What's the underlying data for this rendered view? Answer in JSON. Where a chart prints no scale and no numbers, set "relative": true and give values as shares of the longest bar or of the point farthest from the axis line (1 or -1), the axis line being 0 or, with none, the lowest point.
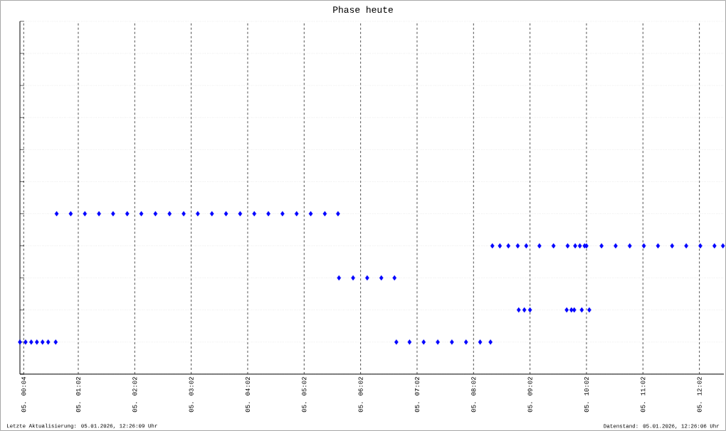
{
  "chart_data": {
    "type": "scatter",
    "title": "Phase heute",
    "relative": true,
    "marker": "diamond",
    "grid": true,
    "xlim": [
      "2026-01-05T00:00",
      "2026-01-05T12:28"
    ],
    "xticks": [
      {
        "value": "2026-01-05T00:04",
        "label": "05. 00:04"
      },
      {
        "value": "2026-01-05T01:02",
        "label": "05. 01:02"
      },
      {
        "value": "2026-01-05T02:02",
        "label": "05. 02:02"
      },
      {
        "value": "2026-01-05T03:02",
        "label": "05. 03:02"
      },
      {
        "value": "2026-01-05T04:02",
        "label": "05. 04:02"
      },
      {
        "value": "2026-01-05T05:02",
        "label": "05. 05:02"
      },
      {
        "value": "2026-01-05T06:02",
        "label": "05. 06:02"
      },
      {
        "value": "2026-01-05T07:02",
        "label": "05. 07:02"
      },
      {
        "value": "2026-01-05T08:02",
        "label": "05. 08:02"
      },
      {
        "value": "2026-01-05T09:02",
        "label": "05. 09:02"
      },
      {
        "value": "2026-01-05T10:02",
        "label": "05. 10:02"
      },
      {
        "value": "2026-01-05T11:02",
        "label": "05. 11:02"
      },
      {
        "value": "2026-01-05T12:02",
        "label": "05. 12:02"
      }
    ],
    "series": [
      {
        "color": "#0000ff",
        "x": [
          "2026-01-05T00:00",
          "2026-01-05T00:06",
          "2026-01-05T00:12",
          "2026-01-05T00:18",
          "2026-01-05T00:24",
          "2026-01-05T00:30",
          "2026-01-05T00:38",
          "2026-01-05T00:39",
          "2026-01-05T00:54",
          "2026-01-05T01:09",
          "2026-01-05T01:24",
          "2026-01-05T01:39",
          "2026-01-05T01:54",
          "2026-01-05T02:09",
          "2026-01-05T02:24",
          "2026-01-05T02:39",
          "2026-01-05T02:54",
          "2026-01-05T03:09",
          "2026-01-05T03:24",
          "2026-01-05T03:39",
          "2026-01-05T03:54",
          "2026-01-05T04:09",
          "2026-01-05T04:24",
          "2026-01-05T04:39",
          "2026-01-05T04:54",
          "2026-01-05T05:09",
          "2026-01-05T05:24",
          "2026-01-05T05:38",
          "2026-01-05T05:39",
          "2026-01-05T05:54",
          "2026-01-05T06:09",
          "2026-01-05T06:24",
          "2026-01-05T06:38",
          "2026-01-05T06:40",
          "2026-01-05T06:54",
          "2026-01-05T07:09",
          "2026-01-05T07:24",
          "2026-01-05T07:39",
          "2026-01-05T07:54",
          "2026-01-05T08:09",
          "2026-01-05T08:20",
          "2026-01-05T08:22",
          "2026-01-05T08:30",
          "2026-01-05T08:39",
          "2026-01-05T08:49",
          "2026-01-05T08:50",
          "2026-01-05T08:56",
          "2026-01-05T09:02",
          "2026-01-05T08:58",
          "2026-01-05T09:12",
          "2026-01-05T09:27",
          "2026-01-05T09:42",
          "2026-01-05T09:41",
          "2026-01-05T09:46",
          "2026-01-05T09:49",
          "2026-01-05T09:50",
          "2026-01-05T09:55",
          "2026-01-05T10:00",
          "2026-01-05T09:57",
          "2026-01-05T10:05",
          "2026-01-05T10:02",
          "2026-01-05T10:18",
          "2026-01-05T10:33",
          "2026-01-05T10:48",
          "2026-01-05T11:03",
          "2026-01-05T11:18",
          "2026-01-05T11:33",
          "2026-01-05T11:48",
          "2026-01-05T12:03",
          "2026-01-05T12:18",
          "2026-01-05T12:27"
        ],
        "values": [
          0.2,
          0.2,
          0.2,
          0.2,
          0.2,
          0.2,
          0.2,
          1,
          1,
          1,
          1,
          1,
          1,
          1,
          1,
          1,
          1,
          1,
          1,
          1,
          1,
          1,
          1,
          1,
          1,
          1,
          1,
          1,
          0.6,
          0.6,
          0.6,
          0.6,
          0.6,
          0.2,
          0.2,
          0.2,
          0.2,
          0.2,
          0.2,
          0.2,
          0.2,
          0.8,
          0.8,
          0.8,
          0.8,
          0.4,
          0.4,
          0.4,
          0.8,
          0.8,
          0.8,
          0.8,
          0.4,
          0.4,
          0.4,
          0.8,
          0.8,
          0.8,
          0.4,
          0.4,
          0.8,
          0.8,
          0.8,
          0.8,
          0.8,
          0.8,
          0.8,
          0.8,
          0.8,
          0.8,
          0.8
        ]
      }
    ],
    "annotations": [
      "Letzte Aktualisierung: 05.01.2026, 12:26:09 Uhr",
      "Datenstand: 05.01.2026, 12:26:06 Uhr"
    ]
  }
}
